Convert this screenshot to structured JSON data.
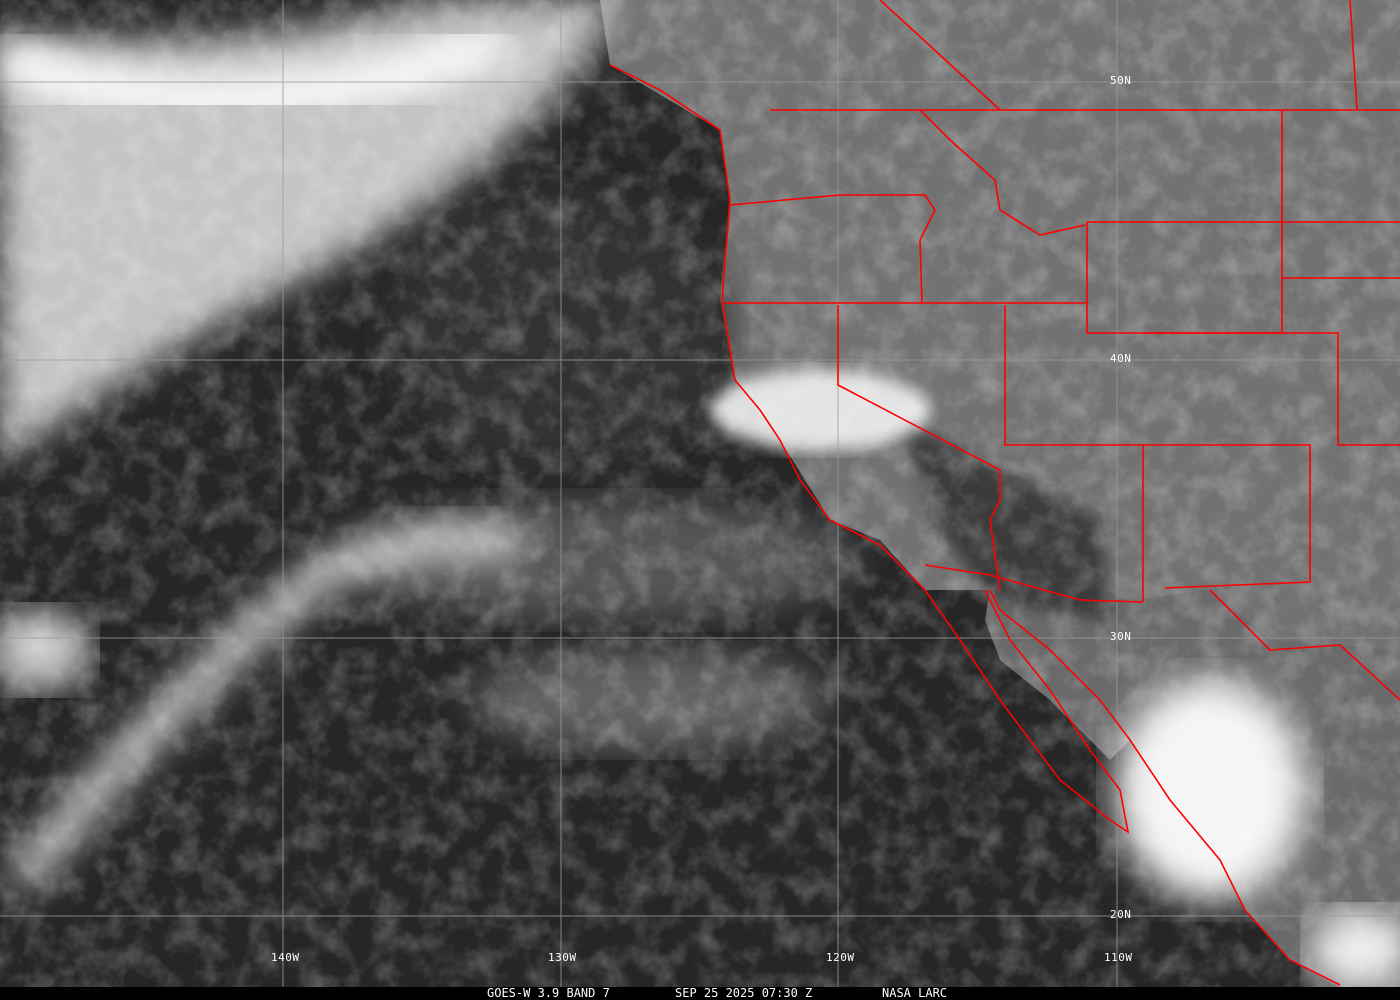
{
  "map": {
    "longitude_labels": [
      "140W",
      "130W",
      "120W",
      "110W"
    ],
    "latitude_labels": [
      "50N",
      "40N",
      "30N",
      "20N"
    ],
    "border_color": "#ff0000",
    "grid_color": "#9a9a9a"
  },
  "caption": {
    "product": "GOES-W 3.9 BAND 7",
    "datetime": "SEP 25 2025 07:30 Z",
    "source": "NASA LARC"
  }
}
